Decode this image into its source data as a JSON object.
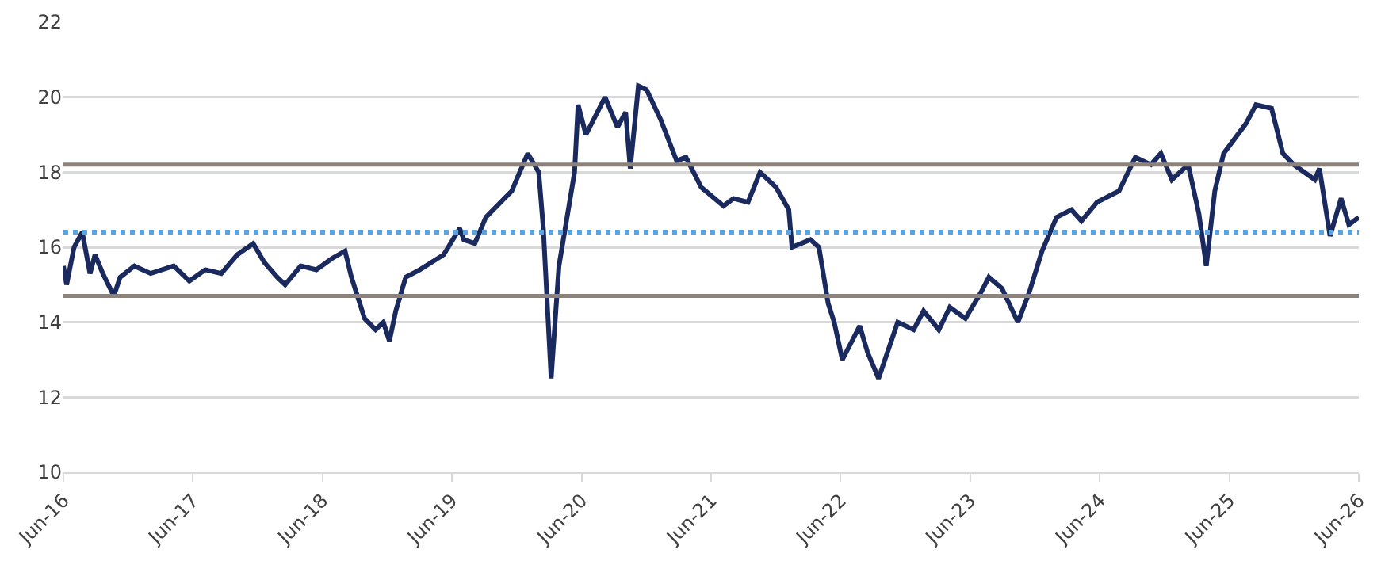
{
  "chart_data": {
    "type": "line",
    "x": [
      "2016-06-01",
      "2016-06-10",
      "2016-07-01",
      "2016-07-24",
      "2016-08-15",
      "2016-08-29",
      "2016-09-20",
      "2016-10-21",
      "2016-11-08",
      "2016-12-18",
      "2017-02-02",
      "2017-04-08",
      "2017-05-22",
      "2017-07-06",
      "2017-08-20",
      "2017-10-04",
      "2017-11-18",
      "2017-12-19",
      "2018-01-25",
      "2018-02-16",
      "2018-04-01",
      "2018-05-15",
      "2018-06-28",
      "2018-08-04",
      "2018-08-22",
      "2018-09-28",
      "2018-10-29",
      "2018-11-20",
      "2018-12-07",
      "2018-12-25",
      "2019-01-22",
      "2019-03-03",
      "2019-05-09",
      "2019-06-23",
      "2019-07-05",
      "2019-08-05",
      "2019-09-05",
      "2019-11-17",
      "2020-01-01",
      "2020-02-01",
      "2020-02-14",
      "2020-03-07",
      "2020-03-29",
      "2020-05-12",
      "2020-05-22",
      "2020-06-13",
      "2020-08-06",
      "2020-09-10",
      "2020-10-03",
      "2020-10-16",
      "2020-11-08",
      "2020-12-01",
      "2021-01-10",
      "2021-02-24",
      "2021-03-22",
      "2021-05-04",
      "2021-07-06",
      "2021-08-03",
      "2021-09-13",
      "2021-10-17",
      "2021-12-01",
      "2022-01-06",
      "2022-01-15",
      "2022-03-08",
      "2022-04-01",
      "2022-04-27",
      "2022-05-14",
      "2022-06-06",
      "2022-07-25",
      "2022-08-16",
      "2022-09-16",
      "2022-11-09",
      "2022-12-24",
      "2023-01-21",
      "2023-03-05",
      "2023-04-05",
      "2023-05-19",
      "2023-07-02",
      "2023-07-24",
      "2023-08-30",
      "2023-10-14",
      "2023-11-15",
      "2023-12-21",
      "2024-01-31",
      "2024-03-13",
      "2024-04-10",
      "2024-05-24",
      "2024-07-25",
      "2024-09-09",
      "2024-10-23",
      "2024-11-20",
      "2024-12-21",
      "2025-02-05",
      "2025-03-07",
      "2025-03-28",
      "2025-04-21",
      "2025-05-16",
      "2025-07-18",
      "2025-08-15",
      "2025-09-28",
      "2025-10-30",
      "2025-11-30",
      "2026-01-28",
      "2026-02-10",
      "2026-03-12",
      "2026-04-12",
      "2026-05-04",
      "2026-06-01"
    ],
    "series": [
      {
        "color": "#1b2a5e",
        "values": [
          15.5,
          15.0,
          16.0,
          16.4,
          15.3,
          15.8,
          15.3,
          14.7,
          15.2,
          15.5,
          15.3,
          15.5,
          15.1,
          15.4,
          15.3,
          15.8,
          16.1,
          15.6,
          15.2,
          15.0,
          15.5,
          15.4,
          15.7,
          15.9,
          15.2,
          14.1,
          13.8,
          14.0,
          13.5,
          14.3,
          15.2,
          15.4,
          15.8,
          16.5,
          16.2,
          16.1,
          16.8,
          17.5,
          18.5,
          18.0,
          16.5,
          12.5,
          15.5,
          18.0,
          19.8,
          19.0,
          20.0,
          19.2,
          19.6,
          18.1,
          20.3,
          20.2,
          19.4,
          18.3,
          18.4,
          17.6,
          17.1,
          17.3,
          17.2,
          18.0,
          17.6,
          17.0,
          16.0,
          16.2,
          16.0,
          14.5,
          14.0,
          13.0,
          13.9,
          13.2,
          12.5,
          14.0,
          13.8,
          14.3,
          13.8,
          14.4,
          14.1,
          14.8,
          15.2,
          14.9,
          14.0,
          14.8,
          15.9,
          16.8,
          17.0,
          16.7,
          17.2,
          17.5,
          18.4,
          18.2,
          18.5,
          17.8,
          18.2,
          16.9,
          15.5,
          17.5,
          18.5,
          19.3,
          19.8,
          19.7,
          18.5,
          18.2,
          17.8,
          18.1,
          16.3,
          17.3,
          16.6,
          16.8
        ]
      }
    ],
    "xlim": [
      "2016-06-01",
      "2026-06-01"
    ],
    "xticks": [
      {
        "value": "2016-06-01",
        "label": "Jun-16"
      },
      {
        "value": "2017-06-01",
        "label": "Jun-17"
      },
      {
        "value": "2018-06-01",
        "label": "Jun-18"
      },
      {
        "value": "2019-06-01",
        "label": "Jun-19"
      },
      {
        "value": "2020-06-01",
        "label": "Jun-20"
      },
      {
        "value": "2021-06-01",
        "label": "Jun-21"
      },
      {
        "value": "2022-06-01",
        "label": "Jun-22"
      },
      {
        "value": "2023-06-01",
        "label": "Jun-23"
      },
      {
        "value": "2024-06-01",
        "label": "Jun-24"
      },
      {
        "value": "2025-06-01",
        "label": "Jun-25"
      },
      {
        "value": "2026-06-01",
        "label": "Jun-26"
      }
    ],
    "ylim": [
      10,
      22
    ],
    "yticks": [
      10,
      12,
      14,
      16,
      18,
      20,
      22
    ],
    "grid": "y",
    "line_style": "solid",
    "marker": "none",
    "ref_lines": [
      {
        "axis": "y",
        "value": 18.2,
        "color": "#8c8279",
        "line_style": "solid"
      },
      {
        "axis": "y",
        "value": 16.4,
        "color": "#5aa5e0",
        "line_style": "dotted"
      },
      {
        "axis": "y",
        "value": 14.7,
        "color": "#8c8279",
        "line_style": "solid"
      }
    ]
  }
}
